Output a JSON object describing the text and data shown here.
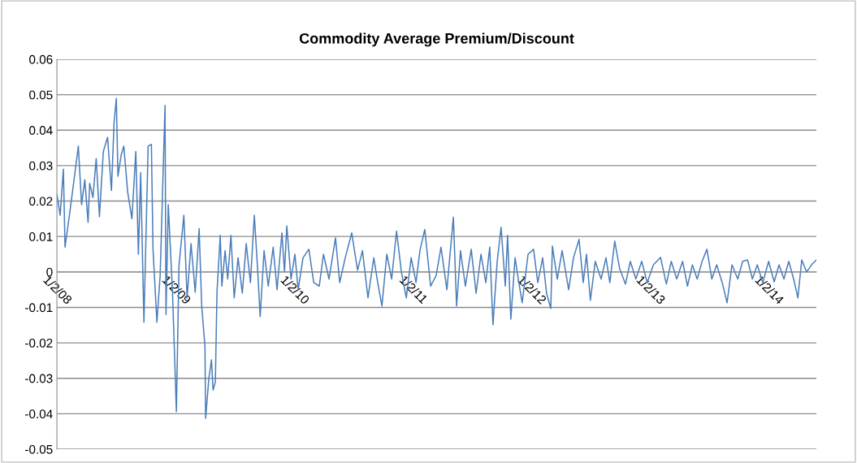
{
  "chart_data": {
    "type": "line",
    "title": "Commodity Average Premium/Discount",
    "x": [
      "2008-01-02",
      "2008-01-12",
      "2008-01-22",
      "2008-01-27",
      "2008-02-08",
      "2008-02-21",
      "2008-03-08",
      "2008-03-18",
      "2008-03-28",
      "2008-04-07",
      "2008-04-12",
      "2008-04-22",
      "2008-05-02",
      "2008-05-12",
      "2008-05-24",
      "2008-06-06",
      "2008-06-18",
      "2008-06-26",
      "2008-07-03",
      "2008-07-08",
      "2008-07-18",
      "2008-07-26",
      "2008-08-07",
      "2008-08-20",
      "2008-09-01",
      "2008-09-09",
      "2008-09-16",
      "2008-09-26",
      "2008-10-09",
      "2008-10-19",
      "2008-10-24",
      "2008-11-05",
      "2008-11-15",
      "2008-11-30",
      "2008-12-03",
      "2008-12-10",
      "2008-12-23",
      "2009-01-04",
      "2009-01-12",
      "2009-01-27",
      "2009-02-06",
      "2009-02-18",
      "2009-03-03",
      "2009-03-15",
      "2009-03-23",
      "2009-04-02",
      "2009-04-04",
      "2009-04-14",
      "2009-04-22",
      "2009-04-27",
      "2009-05-04",
      "2009-05-09",
      "2009-05-19",
      "2009-05-24",
      "2009-06-03",
      "2009-06-11",
      "2009-06-21",
      "2009-07-01",
      "2009-07-13",
      "2009-07-26",
      "2009-08-07",
      "2009-08-20",
      "2009-09-01",
      "2009-09-11",
      "2009-09-19",
      "2009-10-01",
      "2009-10-14",
      "2009-10-29",
      "2009-11-10",
      "2009-11-25",
      "2009-12-03",
      "2009-12-10",
      "2009-12-23",
      "2010-01-04",
      "2010-01-14",
      "2010-01-29",
      "2010-02-16",
      "2010-03-03",
      "2010-03-20",
      "2010-04-02",
      "2010-04-19",
      "2010-05-09",
      "2010-05-22",
      "2010-06-08",
      "2010-06-28",
      "2010-07-16",
      "2010-07-31",
      "2010-08-17",
      "2010-09-04",
      "2010-09-16",
      "2010-09-29",
      "2010-10-14",
      "2010-10-29",
      "2010-11-13",
      "2010-11-28",
      "2010-12-13",
      "2010-12-28",
      "2011-01-12",
      "2011-01-24",
      "2011-02-08",
      "2011-02-26",
      "2011-03-15",
      "2011-03-30",
      "2011-04-17",
      "2011-05-07",
      "2011-05-17",
      "2011-05-29",
      "2011-06-13",
      "2011-07-01",
      "2011-07-16",
      "2011-07-31",
      "2011-08-15",
      "2011-08-27",
      "2011-09-06",
      "2011-09-19",
      "2011-10-01",
      "2011-10-14",
      "2011-10-21",
      "2011-10-31",
      "2011-11-13",
      "2011-11-23",
      "2011-12-05",
      "2011-12-23",
      "2012-01-09",
      "2012-01-22",
      "2012-02-06",
      "2012-02-18",
      "2012-03-02",
      "2012-03-07",
      "2012-03-22",
      "2012-04-06",
      "2012-04-26",
      "2012-05-11",
      "2012-05-28",
      "2012-06-10",
      "2012-06-20",
      "2012-07-02",
      "2012-07-17",
      "2012-08-04",
      "2012-08-19",
      "2012-08-31",
      "2012-09-15",
      "2012-09-30",
      "2012-10-18",
      "2012-11-02",
      "2012-11-19",
      "2012-12-07",
      "2012-12-24",
      "2013-01-12",
      "2013-02-03",
      "2013-02-21",
      "2013-03-08",
      "2013-03-25",
      "2013-04-12",
      "2013-04-27",
      "2013-05-12",
      "2013-05-27",
      "2013-06-11",
      "2013-06-26",
      "2013-07-11",
      "2013-07-26",
      "2013-08-12",
      "2013-08-27",
      "2013-09-11",
      "2013-09-29",
      "2013-10-14",
      "2013-10-29",
      "2013-11-13",
      "2013-11-28",
      "2013-12-15",
      "2014-01-02",
      "2014-01-19",
      "2014-02-03",
      "2014-02-18",
      "2014-03-05",
      "2014-03-20",
      "2014-04-02",
      "2014-04-14",
      "2014-04-29",
      "2014-05-14",
      "2014-05-29"
    ],
    "series": [
      {
        "color": "#4a7ebb",
        "values": [
          0.022,
          0.016,
          0.029,
          0.007,
          0.015,
          0.024,
          0.0355,
          0.019,
          0.026,
          0.014,
          0.025,
          0.021,
          0.032,
          0.0156,
          0.034,
          0.038,
          0.023,
          0.042,
          0.049,
          0.027,
          0.033,
          0.0355,
          0.0225,
          0.015,
          0.034,
          0.005,
          0.028,
          -0.0142,
          0.0355,
          0.036,
          0.0064,
          -0.0142,
          -0.001,
          0.047,
          -0.012,
          0.019,
          -0.0057,
          -0.0394,
          0.0018,
          0.016,
          -0.0073,
          0.008,
          -0.0057,
          0.0122,
          -0.0096,
          -0.021,
          -0.0413,
          -0.03,
          -0.0248,
          -0.0333,
          -0.031,
          -0.0057,
          0.0103,
          -0.004,
          0.006,
          -0.002,
          0.0103,
          -0.0073,
          0.004,
          -0.006,
          0.008,
          -0.003,
          0.016,
          0.001,
          -0.0126,
          0.006,
          -0.004,
          0.007,
          -0.005,
          0.011,
          0.0,
          0.013,
          -0.002,
          0.005,
          -0.005,
          0.004,
          0.0064,
          -0.003,
          -0.004,
          0.005,
          -0.002,
          0.0096,
          -0.003,
          0.004,
          0.011,
          0.0005,
          0.006,
          -0.0073,
          0.004,
          -0.003,
          -0.0096,
          0.005,
          -0.002,
          0.0115,
          0.0,
          -0.0073,
          0.004,
          -0.003,
          0.006,
          0.012,
          -0.004,
          -0.001,
          0.007,
          -0.005,
          0.0154,
          -0.0096,
          0.006,
          -0.004,
          0.0064,
          -0.006,
          0.005,
          -0.003,
          0.007,
          -0.0149,
          0.003,
          0.0126,
          -0.004,
          0.0103,
          -0.0133,
          0.004,
          -0.002,
          -0.0087,
          0.005,
          0.0064,
          -0.003,
          0.004,
          -0.006,
          -0.0103,
          0.0073,
          -0.002,
          0.006,
          -0.005,
          0.004,
          0.0092,
          -0.003,
          0.005,
          -0.008,
          0.003,
          -0.002,
          0.004,
          -0.003,
          0.0087,
          0.001,
          -0.0034,
          0.003,
          -0.002,
          0.003,
          -0.003,
          0.002,
          0.0041,
          -0.0034,
          0.003,
          -0.002,
          0.003,
          -0.004,
          0.002,
          -0.002,
          0.003,
          0.0064,
          -0.002,
          0.002,
          -0.003,
          -0.0087,
          0.002,
          -0.002,
          0.003,
          0.0034,
          -0.002,
          0.002,
          -0.003,
          0.003,
          -0.0028,
          0.002,
          -0.002,
          0.003,
          -0.002,
          -0.0073,
          0.0034,
          0.0,
          0.002,
          0.0034
        ]
      }
    ],
    "xlim": [
      "2008-01-02",
      "2014-05-29"
    ],
    "xticks": [
      {
        "value": "2008-01-02",
        "label": "1/2/08"
      },
      {
        "value": "2009-01-02",
        "label": "1/2/09"
      },
      {
        "value": "2010-01-02",
        "label": "1/2/10"
      },
      {
        "value": "2011-01-02",
        "label": "1/2/11"
      },
      {
        "value": "2012-01-02",
        "label": "1/2/12"
      },
      {
        "value": "2013-01-02",
        "label": "1/2/13"
      },
      {
        "value": "2014-01-02",
        "label": "1/2/14"
      }
    ],
    "ylim": [
      -0.05,
      0.06
    ],
    "yticks": [
      -0.05,
      -0.04,
      -0.03,
      -0.02,
      -0.01,
      0,
      0.01,
      0.02,
      0.03,
      0.04,
      0.05,
      0.06
    ],
    "grid": "y"
  }
}
